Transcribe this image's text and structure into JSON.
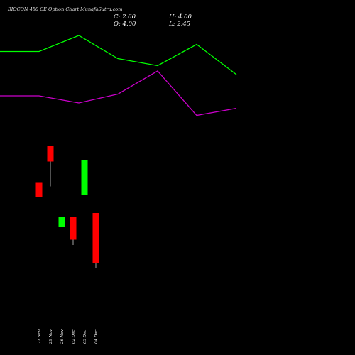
{
  "header": {
    "title": "BIOCON  450  CE Option  Chart MunafaSutra.com",
    "close": "C: 2.60",
    "high": "H: 4.00",
    "open": "O: 4.00",
    "low": "L: 2.45"
  },
  "colors": {
    "background": "#000000",
    "up_candle": "#00ff00",
    "down_candle": "#ff0000",
    "green_line": "#00ff00",
    "magenta_line": "#cc00cc",
    "text": "#ffffff"
  },
  "chart_data": {
    "type": "candlestick",
    "categories": [
      "21 Nov",
      "29 Nov",
      "26 Nov",
      "02 Dec",
      "03 Dec",
      "04 Dec"
    ],
    "candles": [
      {
        "date": "21 Nov",
        "open": 4.85,
        "high": 4.85,
        "low": 4.45,
        "close": 4.45,
        "color": "down"
      },
      {
        "date": "29 Nov",
        "open": 5.9,
        "high": 5.9,
        "low": 4.75,
        "close": 5.45,
        "color": "down"
      },
      {
        "date": "26 Nov",
        "open": 3.6,
        "high": 3.9,
        "low": 3.6,
        "close": 3.9,
        "color": "up"
      },
      {
        "date": "02 Dec",
        "open": 3.9,
        "high": 3.9,
        "low": 3.1,
        "close": 3.25,
        "color": "down"
      },
      {
        "date": "03 Dec",
        "open": 4.5,
        "high": 5.5,
        "low": 4.5,
        "close": 5.5,
        "color": "up"
      },
      {
        "date": "04 Dec",
        "open": 4.0,
        "high": 4.0,
        "low": 2.45,
        "close": 2.6,
        "color": "down"
      }
    ],
    "ylim": [
      0,
      10
    ],
    "overlay_lines": [
      {
        "color": "#00ff00",
        "values": [
          8.55,
          8.55,
          9.0,
          8.35,
          8.15,
          8.75,
          7.9
        ]
      },
      {
        "color": "#cc00cc",
        "values": [
          7.3,
          7.3,
          7.1,
          7.35,
          8.0,
          6.75,
          6.95
        ]
      }
    ]
  }
}
